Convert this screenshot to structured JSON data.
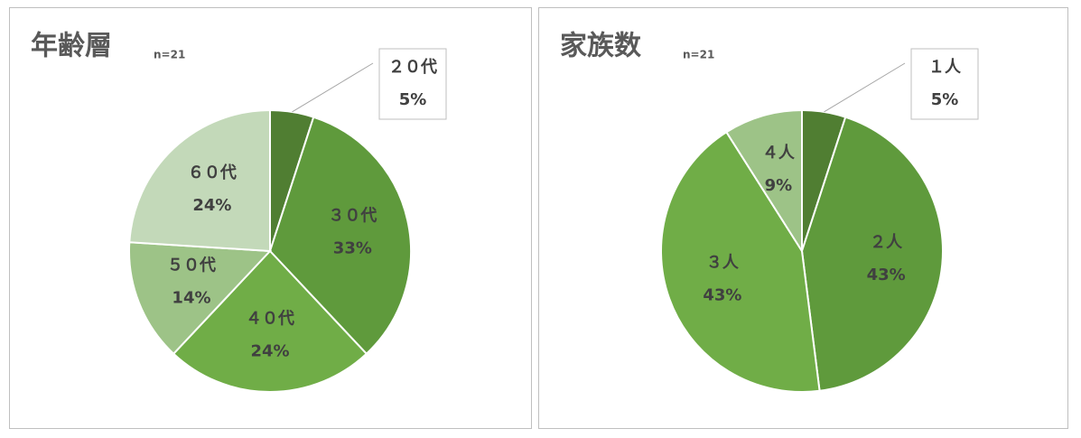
{
  "chart_data": [
    {
      "type": "pie",
      "title": "年齢層",
      "subtitle": "n=21",
      "categories": [
        "２０代",
        "３０代",
        "４０代",
        "５０代",
        "６０代"
      ],
      "values": [
        5,
        33,
        24,
        14,
        24
      ],
      "value_labels": [
        "5%",
        "33%",
        "24%",
        "14%",
        "24%"
      ],
      "colors": [
        "#507e32",
        "#5f9a3c",
        "#70ad47",
        "#9dc387",
        "#c3d9b9"
      ]
    },
    {
      "type": "pie",
      "title": "家族数",
      "subtitle": "n=21",
      "categories": [
        "１人",
        "２人",
        "３人",
        "４人"
      ],
      "values": [
        5,
        43,
        43,
        9
      ],
      "value_labels": [
        "5%",
        "43%",
        "43%",
        "9%"
      ],
      "colors": [
        "#507e32",
        "#5f9a3c",
        "#70ad47",
        "#9dc387"
      ]
    }
  ]
}
